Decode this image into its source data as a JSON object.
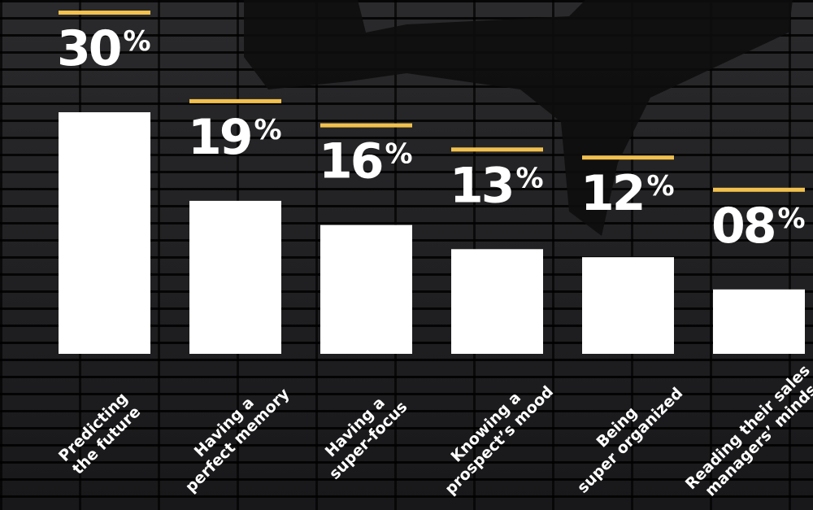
{
  "chart_data": {
    "type": "bar",
    "categories": [
      "Predicting\nthe future",
      "Having a\nperfect memory",
      "Having a\nsuper-focus",
      "Knowing a\nprospect’s mood",
      "Being\nsuper organized",
      "Reading their sales\nmanagers’ minds"
    ],
    "values": [
      30,
      19,
      16,
      13,
      12,
      8
    ],
    "value_labels": [
      "30%",
      "19%",
      "16%",
      "13%",
      "12%",
      "08%"
    ],
    "color": "#ffffff",
    "accent_color": "#f2c14e",
    "ylim": [
      0,
      30
    ]
  }
}
